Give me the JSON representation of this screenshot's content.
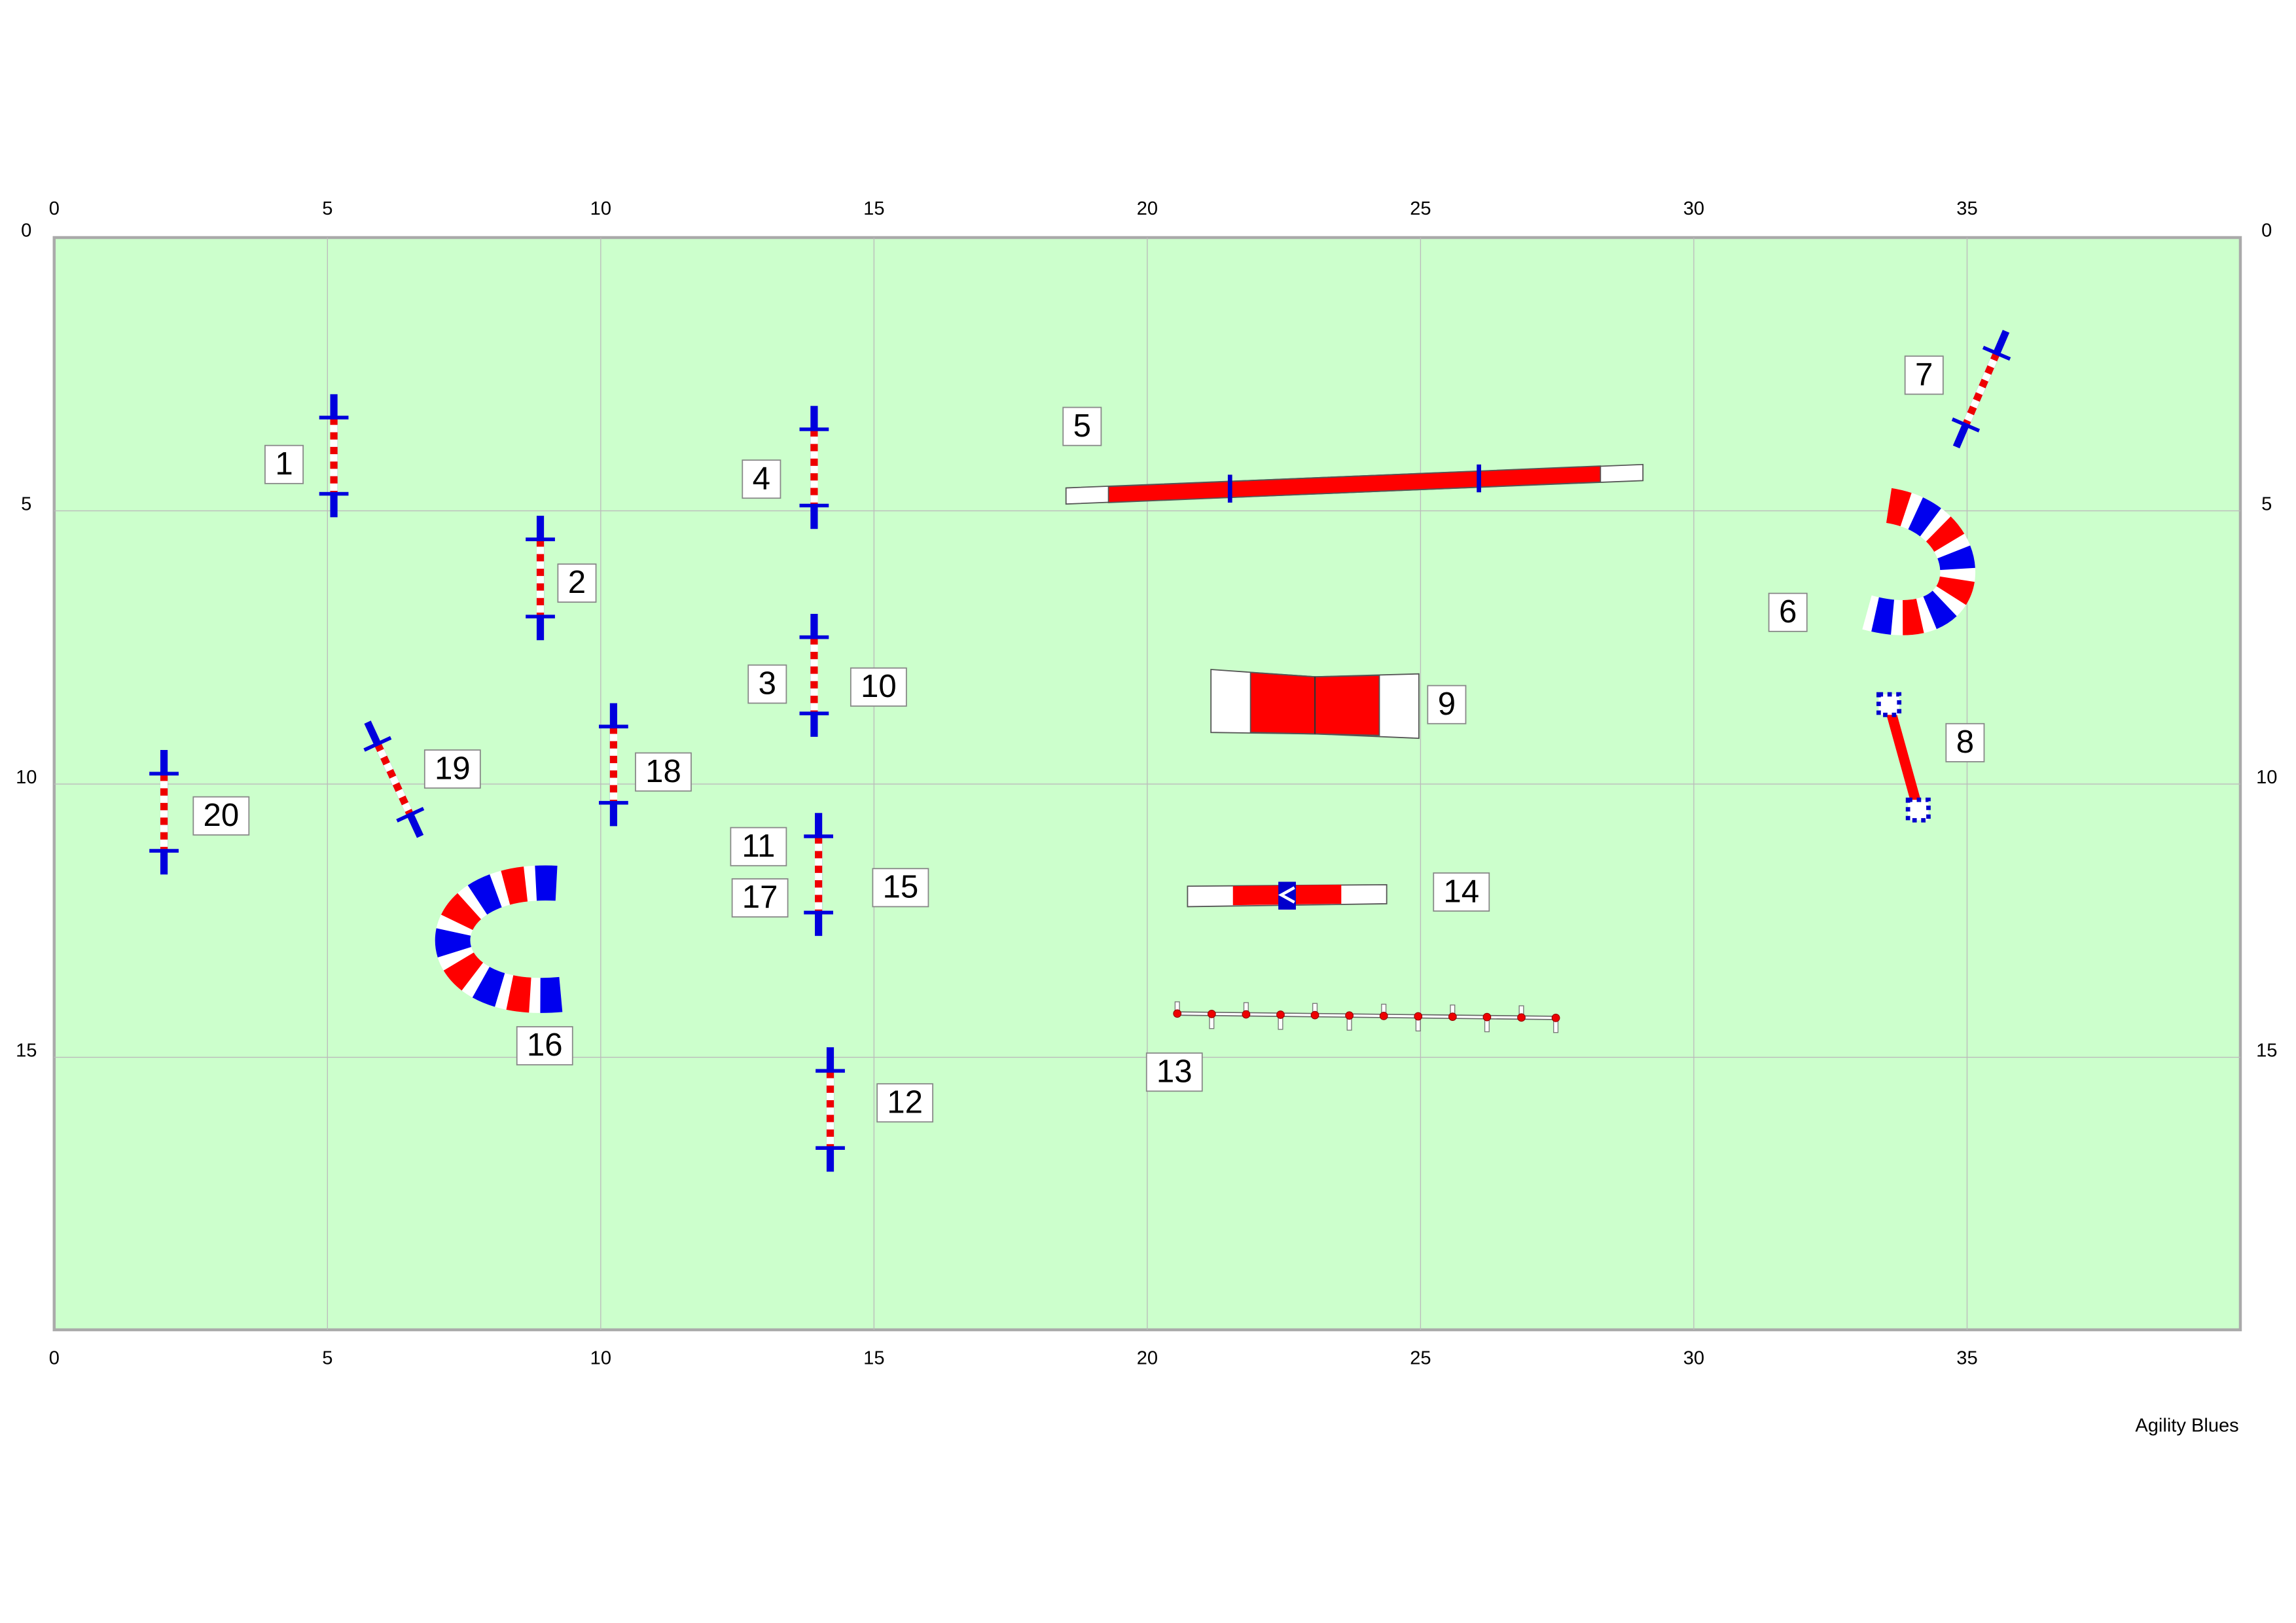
{
  "axis": {
    "x_ticks": [
      0,
      5,
      10,
      15,
      20,
      25,
      30,
      35
    ],
    "y_ticks": [
      0,
      5,
      10,
      15
    ]
  },
  "labels": [
    {
      "text": "1"
    },
    {
      "text": "2"
    },
    {
      "text": "3"
    },
    {
      "text": "4"
    },
    {
      "text": "5"
    },
    {
      "text": "6"
    },
    {
      "text": "7"
    },
    {
      "text": "8"
    },
    {
      "text": "9"
    },
    {
      "text": "10"
    },
    {
      "text": "11"
    },
    {
      "text": "12"
    },
    {
      "text": "13"
    },
    {
      "text": "14"
    },
    {
      "text": "15"
    },
    {
      "text": "16"
    },
    {
      "text": "17"
    },
    {
      "text": "18"
    },
    {
      "text": "19"
    },
    {
      "text": "20"
    }
  ],
  "footer": "Agility Blues"
}
